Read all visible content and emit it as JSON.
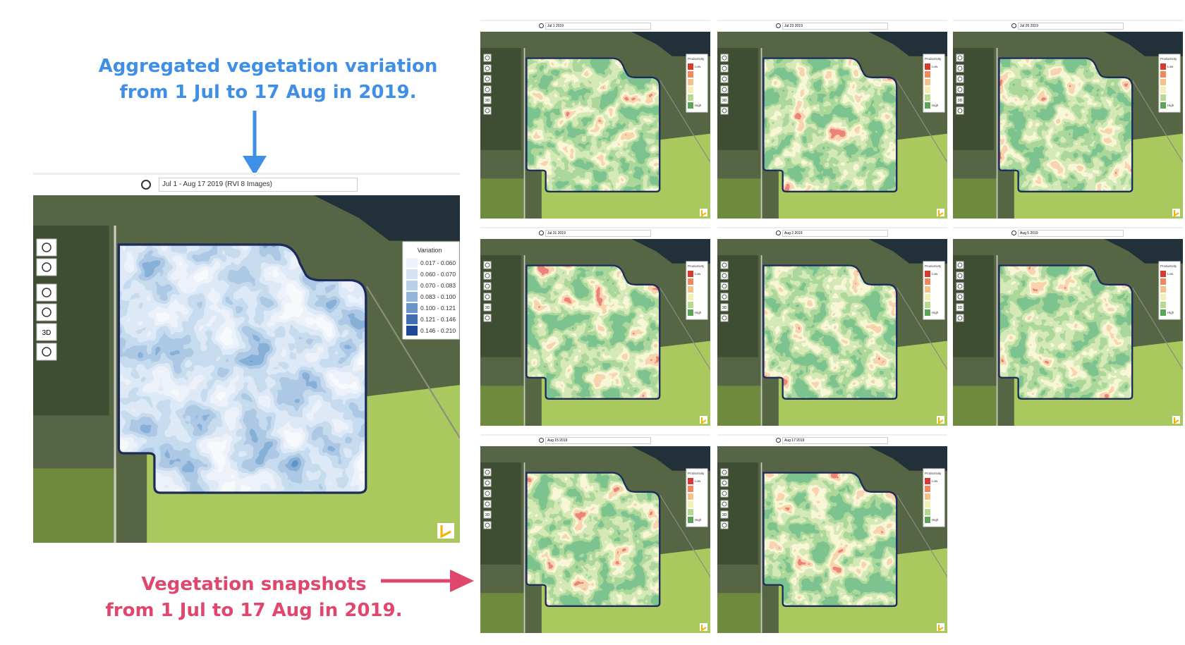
{
  "annotations": {
    "aggregated": [
      "Aggregated vegetation variation",
      "from 1 Jul to 17 Aug in 2019."
    ],
    "snapshots": [
      "Vegetation snapshots",
      "from 1 Jul to 17 Aug in 2019."
    ]
  },
  "main_map": {
    "search": "Jul 1 - Aug 17 2019 (RVI 8 Images)",
    "controls_3d": "3D",
    "legend": {
      "title": "Variation",
      "items": [
        {
          "label": "0.017 - 0.060",
          "color": "#eef3fb"
        },
        {
          "label": "0.060 - 0.070",
          "color": "#d6e2f3"
        },
        {
          "label": "0.070 - 0.083",
          "color": "#b9cfea"
        },
        {
          "label": "0.083 - 0.100",
          "color": "#93b5dc"
        },
        {
          "label": "0.100 - 0.121",
          "color": "#6a95c9"
        },
        {
          "label": "0.121 - 0.146",
          "color": "#3f6fb0"
        },
        {
          "label": "0.146 - 0.210",
          "color": "#1f4a93"
        }
      ]
    }
  },
  "snapshot_legend": {
    "title": "Productivity",
    "low": "Low",
    "high": "High",
    "controls_3d": "3D"
  },
  "snapshots": [
    {
      "date": "Jul 1 2019"
    },
    {
      "date": "Jul 23 2019"
    },
    {
      "date": "Jul 26 2019"
    },
    {
      "date": "Jul 31 2019"
    },
    {
      "date": "Aug 2 2019"
    },
    {
      "date": "Aug 5 2019"
    },
    {
      "date": "Aug 15 2019"
    },
    {
      "date": "Aug 17 2019"
    }
  ]
}
